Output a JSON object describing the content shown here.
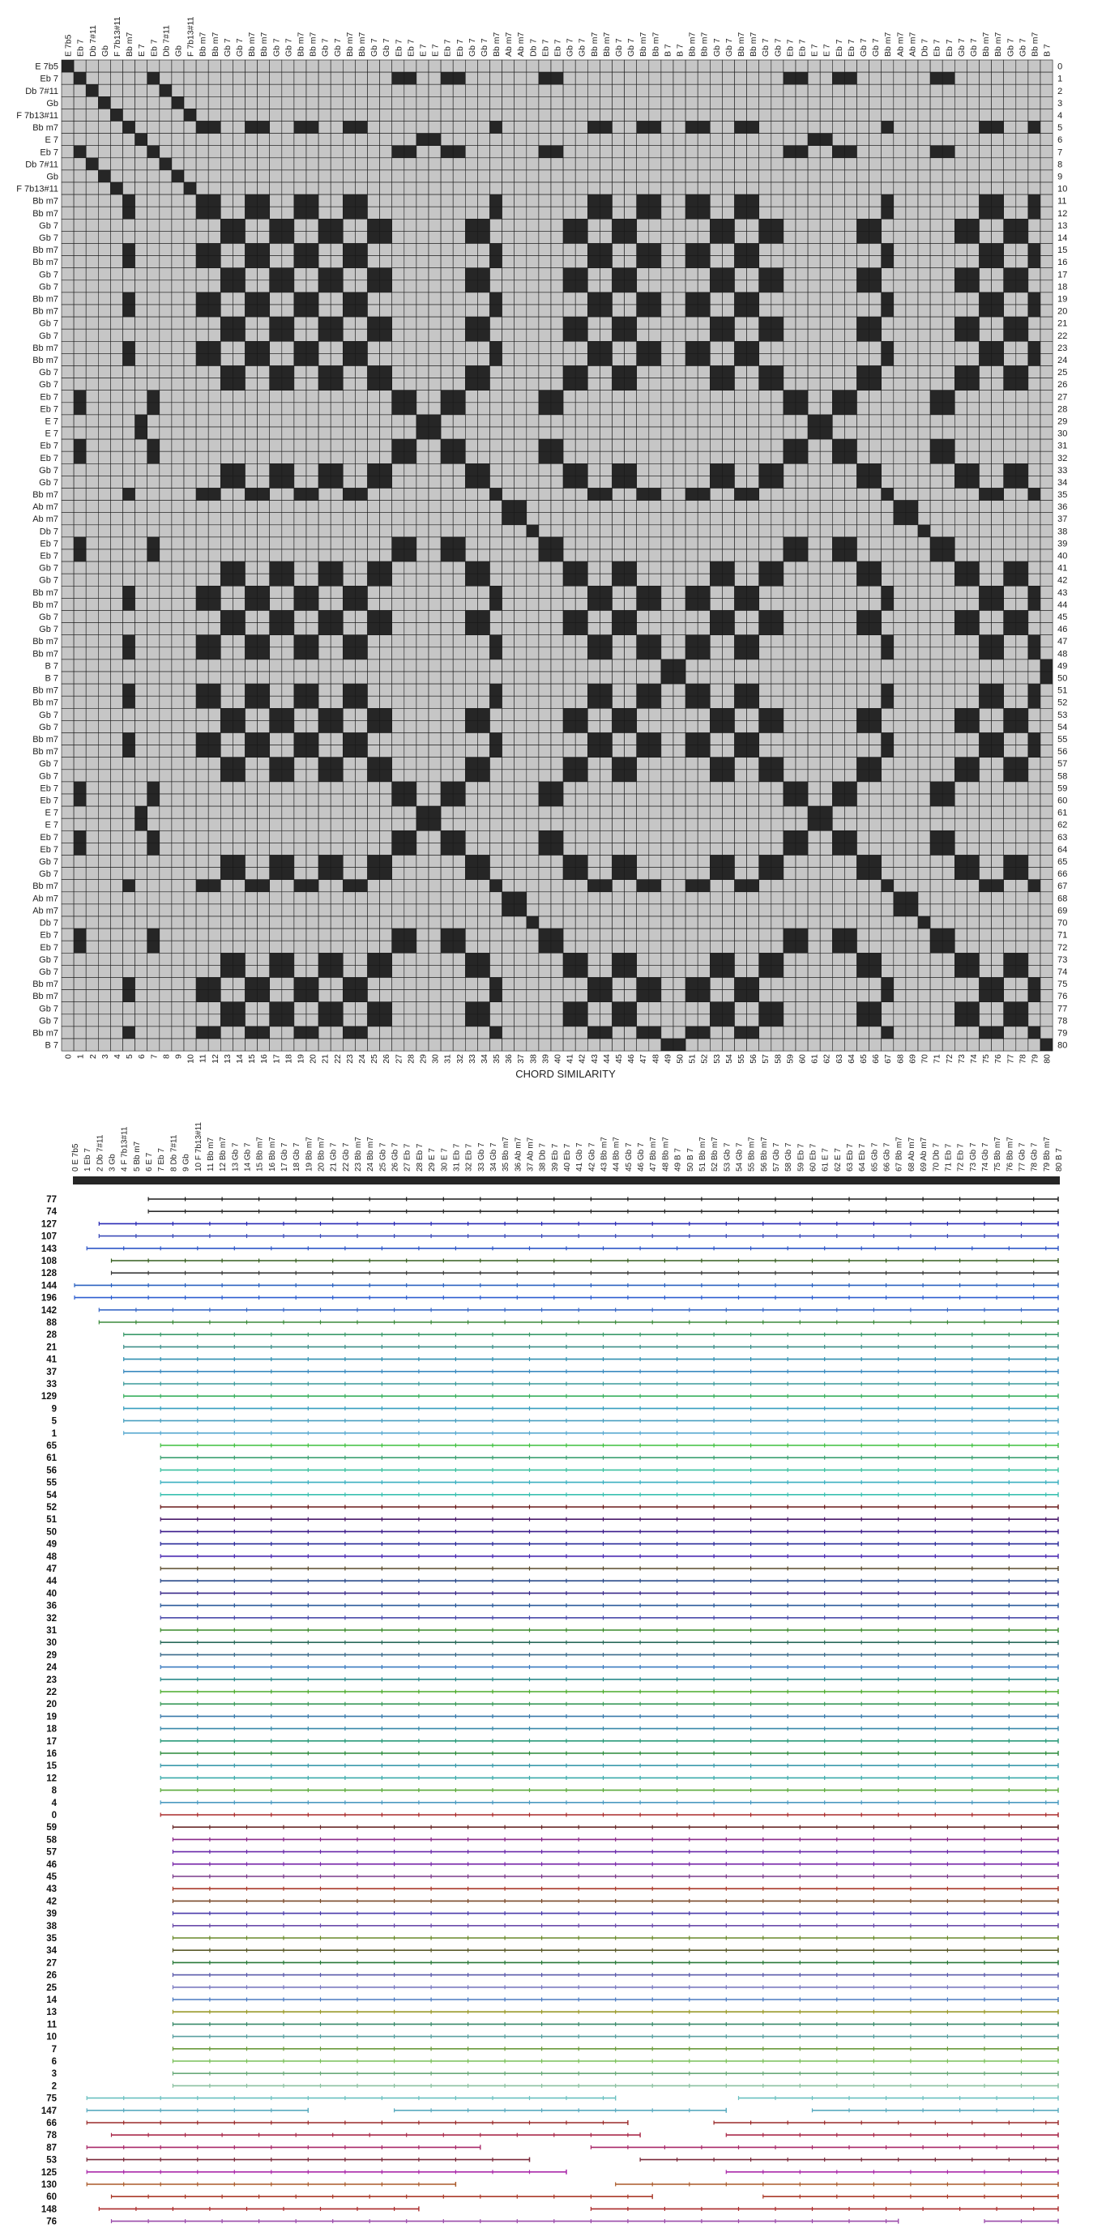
{
  "matrix": {
    "labels": [
      "E 7b5",
      "Eb 7",
      "Db 7#11",
      "Gb",
      "F 7b13#11",
      "Bb m7",
      "E 7",
      "Eb 7",
      "Db 7#11",
      "Gb",
      "F 7b13#11",
      "Bb m7",
      "Bb m7",
      "Gb 7",
      "Gb 7",
      "Bb m7",
      "Bb m7",
      "Gb 7",
      "Gb 7",
      "Bb m7",
      "Bb m7",
      "Gb 7",
      "Gb 7",
      "Bb m7",
      "Bb m7",
      "Gb 7",
      "Gb 7",
      "Eb 7",
      "Eb 7",
      "E 7",
      "E 7",
      "Eb 7",
      "Eb 7",
      "Gb 7",
      "Gb 7",
      "Bb m7",
      "Ab m7",
      "Ab m7",
      "Db 7",
      "Eb 7",
      "Eb 7",
      "Gb 7",
      "Gb 7",
      "Bb m7",
      "Bb m7",
      "Gb 7",
      "Gb 7",
      "Bb m7",
      "Bb m7",
      "B 7",
      "B 7",
      "Bb m7",
      "Bb m7",
      "Gb 7",
      "Gb 7",
      "Bb m7",
      "Bb m7",
      "Gb 7",
      "Gb 7",
      "Eb 7",
      "Eb 7",
      "E 7",
      "E 7",
      "Eb 7",
      "Eb 7",
      "Gb 7",
      "Gb 7",
      "Bb m7",
      "Ab m7",
      "Ab m7",
      "Db 7",
      "Eb 7",
      "Eb 7",
      "Gb 7",
      "Gb 7",
      "Bb m7",
      "Bb m7",
      "Gb 7",
      "Gb 7",
      "Bb m7",
      "B 7"
    ],
    "xlabel": "CHORD SIMILARITY",
    "colors": {
      "on": "#262626",
      "off": "#c6c6c6",
      "grid": "#1a1a1a"
    }
  },
  "arcs": {
    "counts": [
      "77",
      "74",
      "127",
      "107",
      "143",
      "108",
      "128",
      "144",
      "196",
      "142",
      "88",
      "28",
      "21",
      "41",
      "37",
      "33",
      "129",
      "9",
      "5",
      "1",
      "65",
      "61",
      "56",
      "55",
      "54",
      "52",
      "51",
      "50",
      "49",
      "48",
      "47",
      "44",
      "40",
      "36",
      "32",
      "31",
      "30",
      "29",
      "24",
      "23",
      "22",
      "20",
      "19",
      "18",
      "17",
      "16",
      "15",
      "12",
      "8",
      "4",
      "0",
      "59",
      "58",
      "57",
      "46",
      "45",
      "43",
      "42",
      "39",
      "38",
      "35",
      "34",
      "27",
      "26",
      "25",
      "14",
      "13",
      "11",
      "10",
      "7",
      "6",
      "3",
      "2",
      "75",
      "147",
      "66",
      "78",
      "87",
      "53",
      "125",
      "130",
      "60",
      "148",
      "76"
    ],
    "starts": [
      6,
      6,
      2,
      2,
      1,
      3,
      3,
      0,
      0,
      2,
      2,
      4,
      4,
      4,
      4,
      4,
      4,
      4,
      4,
      4,
      7,
      7,
      7,
      7,
      7,
      7,
      7,
      7,
      7,
      7,
      7,
      7,
      7,
      7,
      7,
      7,
      7,
      7,
      7,
      7,
      7,
      7,
      7,
      7,
      7,
      7,
      7,
      7,
      7,
      7,
      7,
      8,
      8,
      8,
      8,
      8,
      8,
      8,
      8,
      8,
      8,
      8,
      8,
      8,
      8,
      8,
      8,
      8,
      8,
      8,
      8,
      8,
      8,
      1,
      1,
      1,
      1,
      1,
      1,
      1,
      1,
      1,
      1,
      1
    ],
    "colors": [
      "#1a1a1a",
      "#2b2b2b",
      "#2a2ab5",
      "#3b4bb8",
      "#2f57c8",
      "#355e1f",
      "#3a3a3a",
      "#2b62c0",
      "#2f5fd0",
      "#3a6ac8",
      "#3b8a3b",
      "#3a9a6a",
      "#3f8f8a",
      "#2f8fb0",
      "#3a8abf",
      "#3a9a9a",
      "#3bb05f",
      "#3a9fbf",
      "#4aa0c0",
      "#5aaad0",
      "#3fbf3f",
      "#3aa070",
      "#3ac0a0",
      "#3aafc0",
      "#3ac0b0",
      "#6a1a1a",
      "#4a1a6a",
      "#3a1a8a",
      "#2a2a9a",
      "#4a2ab0",
      "#5a4a2a",
      "#2a4a8a",
      "#3a2a8a",
      "#2a5a9a",
      "#4a4aaa",
      "#3a8a2a",
      "#2a6a5a",
      "#3a6a8a",
      "#3a7abf",
      "#2a8a8a",
      "#4aaa2a",
      "#3a9a5a",
      "#3a7aaa",
      "#3a8aaa",
      "#2a9a7a",
      "#2a8a3a",
      "#3a9aaa",
      "#3aaaaa",
      "#5aaa3a",
      "#4a9ac0",
      "#aa2a2a",
      "#6a2a2a",
      "#8a2a8a",
      "#6a2aaa",
      "#7a2aaa",
      "#7a3a8a",
      "#aa3a2a",
      "#7a4a2a",
      "#4a3aaa",
      "#6a4aaa",
      "#6a8a2a",
      "#5a5a2a",
      "#2a7a3a",
      "#5a5aaa",
      "#7a7ac0",
      "#4a7ac0",
      "#9a9a2a",
      "#3a8a6a",
      "#5aa0a0",
      "#6a9a3a",
      "#7ac05a",
      "#6aaa7a",
      "#8ac0a0",
      "#6ac0c0",
      "#5aaabf",
      "#9a2a2a",
      "#aa2a4a",
      "#aa2a6a",
      "#7a2a3a",
      "#aa2aaa",
      "#aa5a2a",
      "#aa3a2a",
      "#aa2a2a",
      "#9a4aaa"
    ],
    "segments": {
      "75": [
        [
          1,
          44
        ],
        [
          54,
          80
        ]
      ],
      "147": [
        [
          1,
          19
        ],
        [
          26,
          53
        ],
        [
          60,
          80
        ]
      ],
      "66": [
        [
          1,
          45
        ],
        [
          52,
          80
        ]
      ],
      "78": [
        [
          3,
          46
        ],
        [
          53,
          80
        ]
      ],
      "87": [
        [
          1,
          33
        ],
        [
          42,
          80
        ]
      ],
      "53": [
        [
          1,
          37
        ],
        [
          46,
          80
        ]
      ],
      "125": [
        [
          1,
          40
        ],
        [
          53,
          80
        ]
      ],
      "130": [
        [
          1,
          31
        ],
        [
          44,
          80
        ]
      ],
      "60": [
        [
          3,
          47
        ],
        [
          56,
          80
        ]
      ],
      "148": [
        [
          2,
          28
        ],
        [
          42,
          80
        ]
      ],
      "76": [
        [
          3,
          67
        ],
        [
          74,
          80
        ]
      ]
    }
  }
}
